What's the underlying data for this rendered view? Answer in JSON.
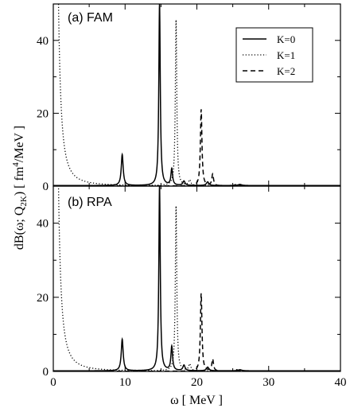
{
  "chart_data": {
    "type": "line",
    "xlabel": "ω [ MeV ]",
    "ylabel": "dB(ω; Q2K) [ fm4/MeV ]",
    "ylabel_parts": {
      "pre": "dB(ω; Q",
      "sub": "2K",
      "mid": ") [ fm",
      "sup": "4",
      "post": "/MeV ]"
    },
    "xlim": [
      0,
      40
    ],
    "ylim": [
      0,
      50
    ],
    "xticks": [
      0,
      10,
      20,
      30,
      40
    ],
    "yticks": [
      0,
      20,
      40
    ],
    "grid": false,
    "legend": {
      "placement": "top-right",
      "entries": [
        {
          "label": "K=0",
          "style": "solid"
        },
        {
          "label": "K=1",
          "style": "dotted"
        },
        {
          "label": "K=2",
          "style": "dashed"
        }
      ]
    },
    "panels": [
      {
        "label": "(a) FAM",
        "series": [
          {
            "name": "K=0",
            "style": "solid",
            "peaks": [
              {
                "x": 9.6,
                "h": 8.5,
                "w": 0.16
              },
              {
                "x": 14.8,
                "h": 50,
                "w": 0.12
              },
              {
                "x": 16.5,
                "h": 4.5,
                "w": 0.14
              },
              {
                "x": 18.2,
                "h": 1.2,
                "w": 0.18
              },
              {
                "x": 21.5,
                "h": 1.0,
                "w": 0.2
              },
              {
                "x": 26.0,
                "h": 0.3,
                "w": 0.3
              }
            ],
            "background": 0.15
          },
          {
            "name": "K=1",
            "style": "dotted",
            "peaks": [
              {
                "x": 0.1,
                "h": 300,
                "w": 0.28
              },
              {
                "x": 17.1,
                "h": 45.5,
                "w": 0.12
              },
              {
                "x": 19.0,
                "h": 1.5,
                "w": 0.18
              }
            ],
            "background": 0.05
          },
          {
            "name": "K=2",
            "style": "dashed",
            "peaks": [
              {
                "x": 20.6,
                "h": 21,
                "w": 0.13
              },
              {
                "x": 22.2,
                "h": 3.2,
                "w": 0.14
              },
              {
                "x": 25.5,
                "h": 0.4,
                "w": 0.3
              }
            ],
            "background": 0.05
          }
        ]
      },
      {
        "label": "(b) RPA",
        "series": [
          {
            "name": "K=0",
            "style": "solid",
            "peaks": [
              {
                "x": 9.6,
                "h": 8.5,
                "w": 0.16
              },
              {
                "x": 14.8,
                "h": 50,
                "w": 0.12
              },
              {
                "x": 16.5,
                "h": 6.5,
                "w": 0.14
              },
              {
                "x": 18.2,
                "h": 1.5,
                "w": 0.18
              },
              {
                "x": 21.5,
                "h": 1.0,
                "w": 0.2
              },
              {
                "x": 26.0,
                "h": 0.3,
                "w": 0.3
              }
            ],
            "background": 0.15
          },
          {
            "name": "K=1",
            "style": "dotted",
            "peaks": [
              {
                "x": 0.1,
                "h": 300,
                "w": 0.28
              },
              {
                "x": 17.1,
                "h": 44.5,
                "w": 0.12
              },
              {
                "x": 19.0,
                "h": 1.8,
                "w": 0.18
              }
            ],
            "background": 0.05
          },
          {
            "name": "K=2",
            "style": "dashed",
            "peaks": [
              {
                "x": 20.6,
                "h": 21,
                "w": 0.13
              },
              {
                "x": 22.2,
                "h": 3.2,
                "w": 0.14
              },
              {
                "x": 25.5,
                "h": 0.4,
                "w": 0.3
              }
            ],
            "background": 0.05
          }
        ]
      }
    ]
  }
}
